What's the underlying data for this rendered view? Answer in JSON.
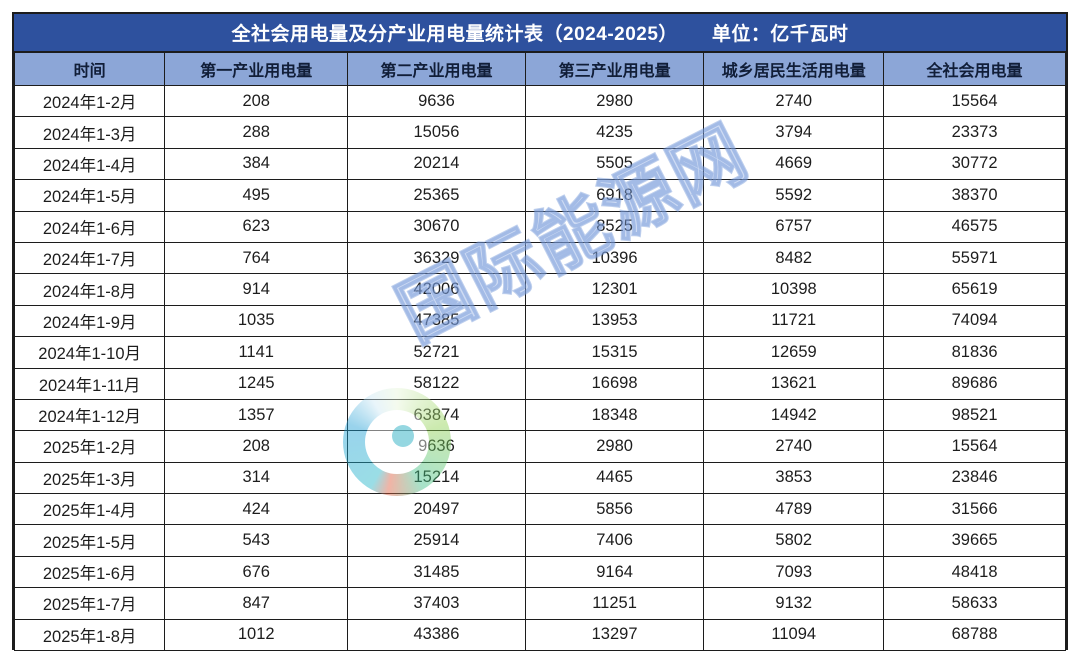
{
  "title": {
    "text": "全社会用电量及分产业用电量统计表（2024-2025）",
    "unit_label": "单位：亿千瓦时"
  },
  "watermark": {
    "text": "国际能源网",
    "logo": "energy-network-ring-logo"
  },
  "colors": {
    "title_bg": "#2e519e",
    "header_bg": "#8ca6d7",
    "header_text": "#111e38",
    "border": "#1c1c1c",
    "cell_text": "#1d1d1d",
    "row_bg": "#ffffff",
    "watermark_blue": "#84a4e0"
  },
  "chart_data": {
    "type": "table",
    "title": "全社会用电量及分产业用电量统计表（2024-2025）",
    "unit": "亿千瓦时",
    "columns": [
      "时间",
      "第一产业用电量",
      "第二产业用电量",
      "第三产业用电量",
      "城乡居民生活用电量",
      "全社会用电量"
    ],
    "rows": [
      [
        "2024年1-2月",
        208,
        9636,
        2980,
        2740,
        15564
      ],
      [
        "2024年1-3月",
        288,
        15056,
        4235,
        3794,
        23373
      ],
      [
        "2024年1-4月",
        384,
        20214,
        5505,
        4669,
        30772
      ],
      [
        "2024年1-5月",
        495,
        25365,
        6918,
        5592,
        38370
      ],
      [
        "2024年1-6月",
        623,
        30670,
        8525,
        6757,
        46575
      ],
      [
        "2024年1-7月",
        764,
        36329,
        10396,
        8482,
        55971
      ],
      [
        "2024年1-8月",
        914,
        42006,
        12301,
        10398,
        65619
      ],
      [
        "2024年1-9月",
        1035,
        47385,
        13953,
        11721,
        74094
      ],
      [
        "2024年1-10月",
        1141,
        52721,
        15315,
        12659,
        81836
      ],
      [
        "2024年1-11月",
        1245,
        58122,
        16698,
        13621,
        89686
      ],
      [
        "2024年1-12月",
        1357,
        63874,
        18348,
        14942,
        98521
      ],
      [
        "2025年1-2月",
        208,
        9636,
        2980,
        2740,
        15564
      ],
      [
        "2025年1-3月",
        314,
        15214,
        4465,
        3853,
        23846
      ],
      [
        "2025年1-4月",
        424,
        20497,
        5856,
        4789,
        31566
      ],
      [
        "2025年1-5月",
        543,
        25914,
        7406,
        5802,
        39665
      ],
      [
        "2025年1-6月",
        676,
        31485,
        9164,
        7093,
        48418
      ],
      [
        "2025年1-7月",
        847,
        37403,
        11251,
        9132,
        58633
      ],
      [
        "2025年1-8月",
        1012,
        43386,
        13297,
        11094,
        68788
      ]
    ]
  }
}
